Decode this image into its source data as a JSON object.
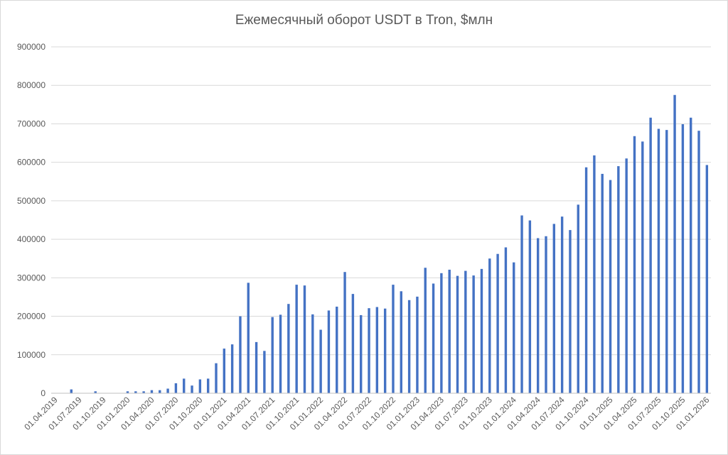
{
  "chart_data": {
    "type": "bar",
    "title": "Ежемесячный оборот USDT в Tron, $млн",
    "xlabel": "",
    "ylabel": "",
    "ylim": [
      0,
      900000
    ],
    "yticks": [
      "0",
      "100000",
      "200000",
      "300000",
      "400000",
      "500000",
      "600000",
      "700000",
      "800000",
      "900000"
    ],
    "xtick_labels": [
      "01.04.2019",
      "01.07.2019",
      "01.10.2019",
      "01.01.2020",
      "01.04.2020",
      "01.07.2020",
      "01.10.2020",
      "01.01.2021",
      "01.04.2021",
      "01.07.2021",
      "01.10.2021",
      "01.01.2022",
      "01.04.2022",
      "01.07.2022",
      "01.10.2022",
      "01.01.2023",
      "01.04.2023",
      "01.07.2023",
      "01.10.2023",
      "01.01.2024",
      "01.04.2024",
      "01.07.2024",
      "01.10.2024",
      "01.01.2025",
      "01.04.2025",
      "01.07.2025",
      "01.10.2025",
      "01.01.2026"
    ],
    "grid": true,
    "legend": "none",
    "bar_color": "#4472c4",
    "series": [
      {
        "values": [
          0,
          0,
          10000,
          0,
          0,
          5000,
          0,
          0,
          0,
          5000,
          5000,
          5000,
          8000,
          8000,
          12000,
          26000,
          38000,
          20000,
          36000,
          38000,
          78000,
          116000,
          127000,
          200000,
          287000,
          133000,
          110000,
          198000,
          204000,
          232000,
          282000,
          280000,
          205000,
          165000,
          215000,
          225000,
          315000,
          258000,
          203000,
          221000,
          224000,
          220000,
          282000,
          265000,
          242000,
          251000,
          326000,
          285000,
          312000,
          321000,
          305000,
          318000,
          306000,
          323000,
          350000,
          362000,
          379000,
          340000,
          462000,
          449000,
          403000,
          408000,
          440000,
          459000,
          424000,
          490000,
          587000,
          618000,
          570000,
          554000,
          590000,
          610000,
          668000,
          654000,
          716000,
          687000,
          684000,
          775000,
          699000,
          716000,
          682000,
          593000
        ]
      }
    ]
  }
}
